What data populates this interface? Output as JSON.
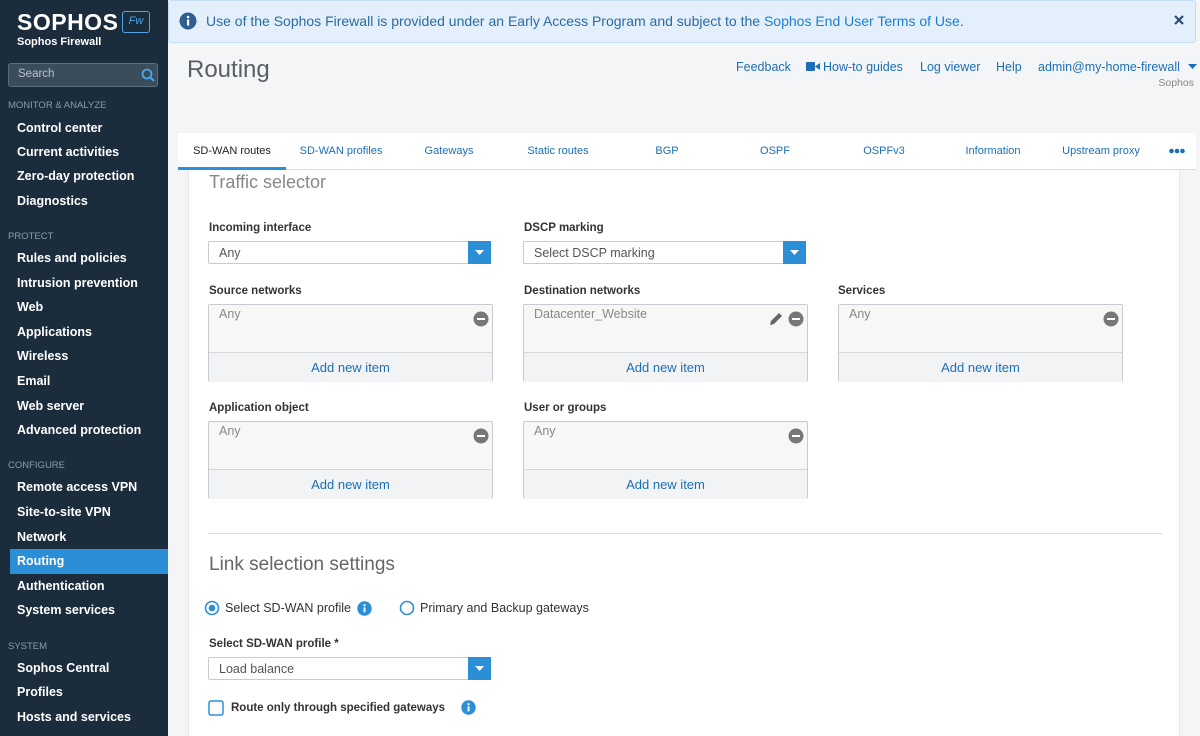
{
  "sidebar": {
    "brand": "SOPHOS",
    "badge": "Fw",
    "product": "Sophos Firewall",
    "search": "Search",
    "sections": [
      {
        "title": "MONITOR & ANALYZE",
        "items": [
          "Control center",
          "Current activities",
          "Zero-day protection",
          "Diagnostics"
        ]
      },
      {
        "title": "PROTECT",
        "items": [
          "Rules and policies",
          "Intrusion prevention",
          "Web",
          "Applications",
          "Wireless",
          "Email",
          "Web server",
          "Advanced protection"
        ]
      },
      {
        "title": "CONFIGURE",
        "items": [
          "Remote access VPN",
          "Site-to-site VPN",
          "Network",
          "Routing",
          "Authentication",
          "System services"
        ]
      },
      {
        "title": "SYSTEM",
        "items": [
          "Sophos Central",
          "Profiles",
          "Hosts and services"
        ]
      }
    ]
  },
  "banner": {
    "text": "Use of the Sophos Firewall is provided under an Early Access Program and subject to the ",
    "link": "Sophos End User Terms of Use",
    "end": "."
  },
  "header": {
    "title": "Routing",
    "links": [
      "Feedback",
      "How-to guides",
      "Log viewer",
      "Help"
    ],
    "user": "admin@my-home-firewall",
    "org": "Sophos"
  },
  "tabs": [
    "SD-WAN routes",
    "SD-WAN profiles",
    "Gateways",
    "Static routes",
    "BGP",
    "OSPF",
    "OSPFv3",
    "Information",
    "Upstream proxy"
  ],
  "form": {
    "traffic_title": "Traffic selector",
    "incoming": {
      "label": "Incoming interface",
      "value": "Any"
    },
    "dscp": {
      "label": "DSCP marking",
      "value": "Select DSCP marking"
    },
    "lists": [
      {
        "label": "Source networks",
        "item": "Any",
        "add": "Add new item"
      },
      {
        "label": "Destination networks",
        "item": "Datacenter_Website",
        "add": "Add new item"
      },
      {
        "label": "Services",
        "item": "Any",
        "add": "Add new item"
      },
      {
        "label": "Application object",
        "item": "Any",
        "add": "Add new item"
      },
      {
        "label": "User or groups",
        "item": "Any",
        "add": "Add new item"
      }
    ],
    "link_title": "Link selection settings",
    "radios": [
      "Select SD-WAN profile",
      "Primary and Backup gateways"
    ],
    "profile": {
      "label": "Select SD-WAN profile *",
      "value": "Load balance"
    },
    "checkbox": "Route only through specified gateways"
  }
}
